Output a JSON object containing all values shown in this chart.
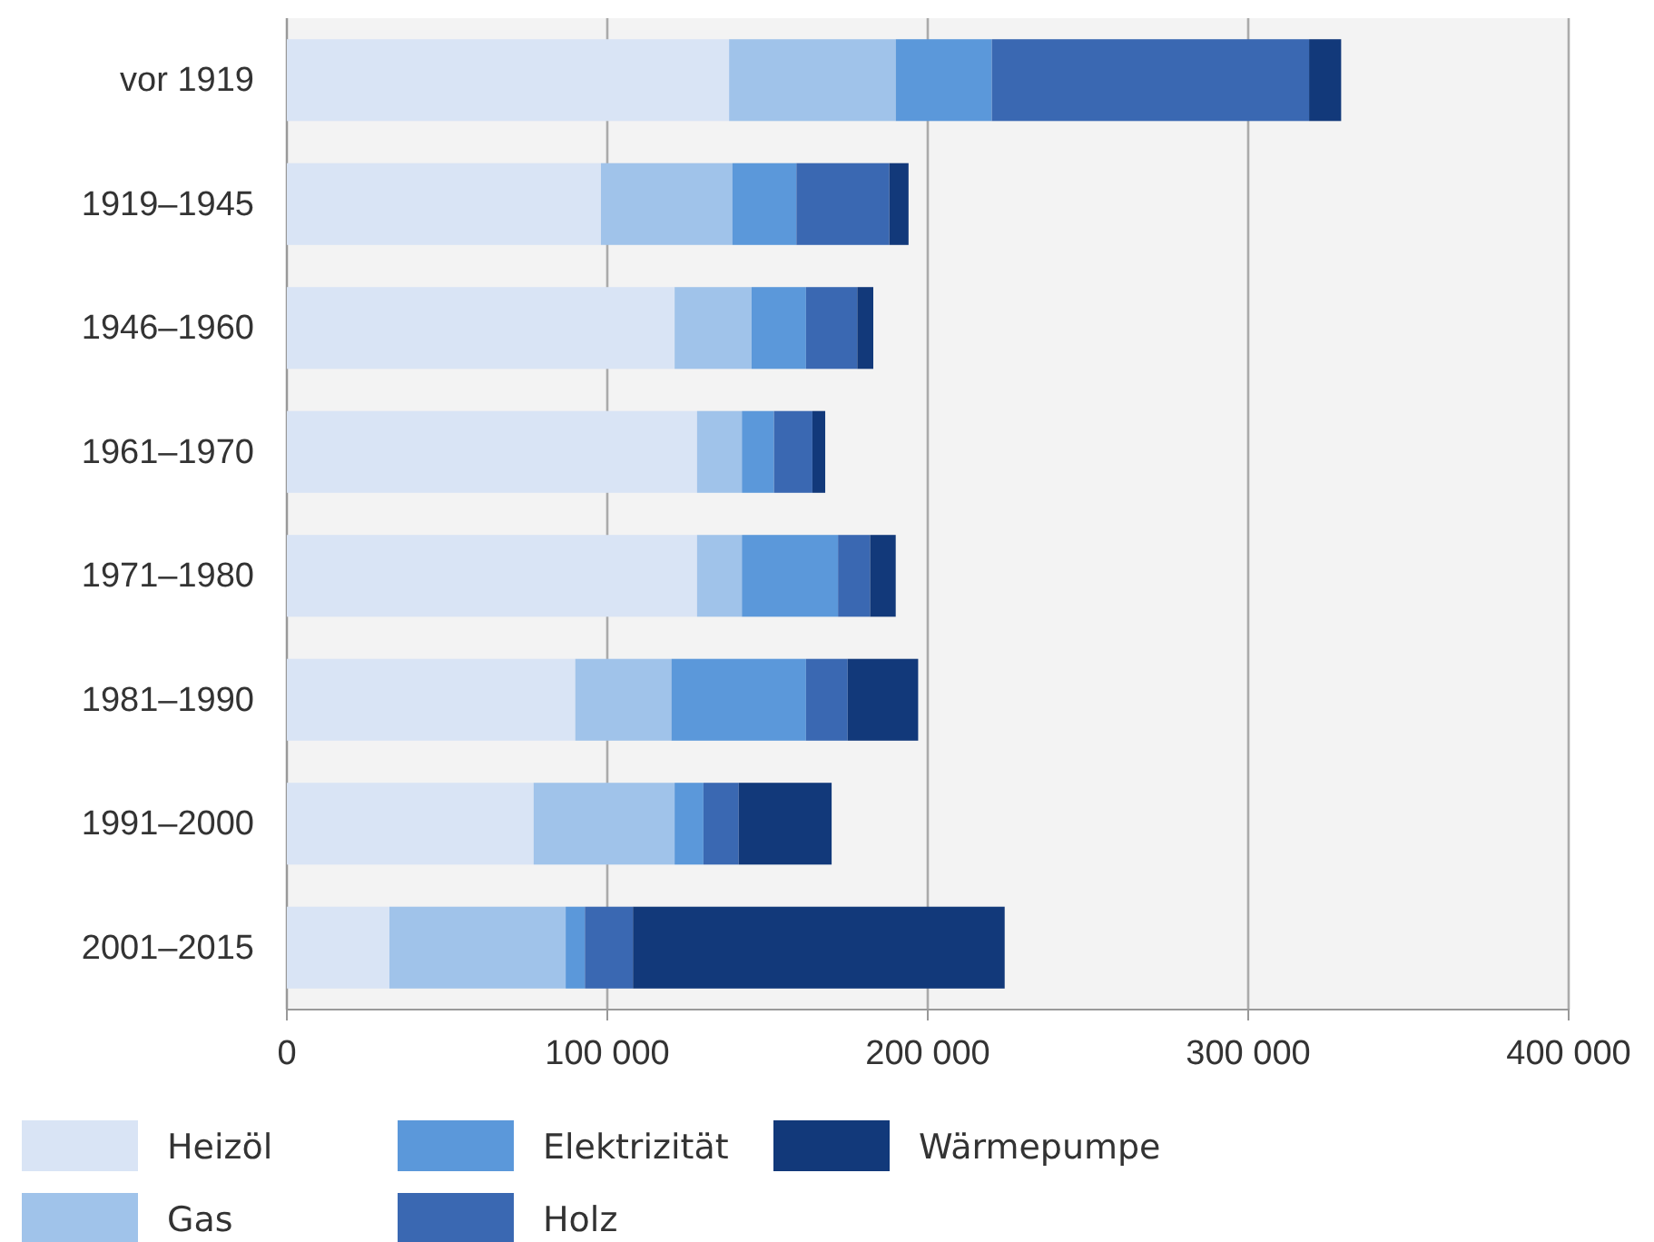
{
  "chart_data": {
    "type": "bar",
    "orientation": "horizontal",
    "stacked": true,
    "categories": [
      "vor 1919",
      "1919–1945",
      "1946–1960",
      "1961–1970",
      "1971–1980",
      "1981–1990",
      "1991–2000",
      "2001–2015"
    ],
    "series": [
      {
        "name": "Heizöl",
        "color": "#d9e4f5",
        "values": [
          138000,
          98000,
          121000,
          128000,
          128000,
          90000,
          77000,
          32000
        ]
      },
      {
        "name": "Gas",
        "color": "#a0c3ea",
        "values": [
          52000,
          41000,
          24000,
          14000,
          14000,
          30000,
          44000,
          55000
        ]
      },
      {
        "name": "Elektrizität",
        "color": "#5b98da",
        "values": [
          30000,
          20000,
          17000,
          10000,
          30000,
          42000,
          9000,
          6000
        ]
      },
      {
        "name": "Holz",
        "color": "#3a68b2",
        "values": [
          99000,
          29000,
          16000,
          12000,
          10000,
          13000,
          11000,
          15000
        ]
      },
      {
        "name": "Wärmepumpe",
        "color": "#12397a",
        "values": [
          10000,
          6000,
          5000,
          4000,
          8000,
          22000,
          29000,
          116000
        ]
      }
    ],
    "xlim": [
      0,
      400000
    ],
    "xticks": [
      {
        "value": 0,
        "label": "0"
      },
      {
        "value": 100000,
        "label": "100 000"
      },
      {
        "value": 200000,
        "label": "200 000"
      },
      {
        "value": 300000,
        "label": "300 000"
      },
      {
        "value": 400000,
        "label": "400 000"
      }
    ],
    "grid": "x",
    "legend": "bottom"
  }
}
